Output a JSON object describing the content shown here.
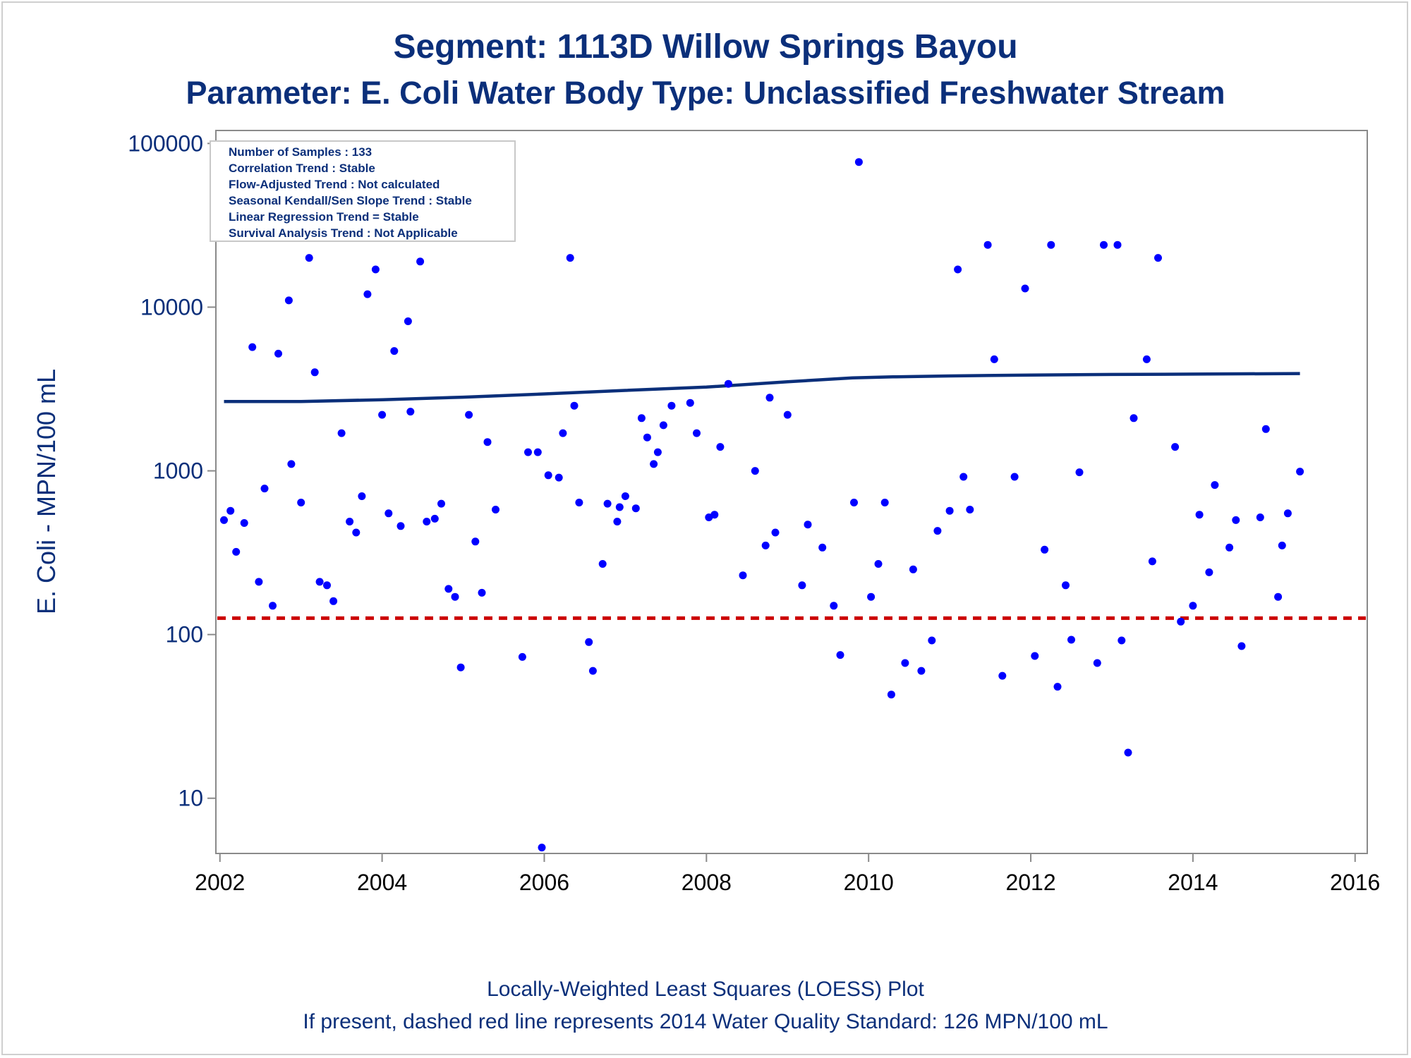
{
  "chart_data": {
    "type": "scatter",
    "title": "Segment: 1113D  Willow Springs Bayou",
    "subtitle": "Parameter: E. Coli   Water Body Type: Unclassified Freshwater Stream",
    "ylabel": "E. Coli - MPN/100 mL",
    "xlabel": "",
    "footer": [
      "Locally-Weighted Least Squares (LOESS) Plot",
      "If present, dashed red line represents 2014 Water Quality Standard: 126 MPN/100 mL"
    ],
    "y_scale": "log",
    "ylim": [
      4.6,
      120000
    ],
    "xlim": [
      2001.95,
      2016.15
    ],
    "x_ticks": [
      2002,
      2004,
      2006,
      2008,
      2010,
      2012,
      2014,
      2016
    ],
    "y_ticks": [
      10,
      100,
      1000,
      10000,
      100000
    ],
    "grid": false,
    "stats_box": [
      "Number of Samples : 133",
      "Correlation Trend : Stable",
      "Flow-Adjusted Trend : Not calculated",
      "Seasonal Kendall/Sen Slope Trend : Stable",
      "Linear Regression Trend = Stable",
      "Survival Analysis Trend : Not Applicable"
    ],
    "standard_line": {
      "value": 126,
      "color": "#cc0000",
      "style": "dashed"
    },
    "series": [
      {
        "kind": "points",
        "color": "#0000ff",
        "points": [
          [
            2002.05,
            500
          ],
          [
            2002.13,
            570
          ],
          [
            2002.2,
            320
          ],
          [
            2002.3,
            480
          ],
          [
            2002.4,
            5700
          ],
          [
            2002.48,
            210
          ],
          [
            2002.55,
            780
          ],
          [
            2002.65,
            150
          ],
          [
            2002.72,
            5200
          ],
          [
            2002.85,
            11000
          ],
          [
            2002.88,
            1100
          ],
          [
            2003.0,
            640
          ],
          [
            2003.1,
            20000
          ],
          [
            2003.17,
            4000
          ],
          [
            2003.23,
            210
          ],
          [
            2003.32,
            200
          ],
          [
            2003.4,
            160
          ],
          [
            2003.5,
            1700
          ],
          [
            2003.6,
            490
          ],
          [
            2003.68,
            420
          ],
          [
            2003.75,
            700
          ],
          [
            2003.82,
            12000
          ],
          [
            2003.92,
            17000
          ],
          [
            2004.0,
            2200
          ],
          [
            2004.08,
            550
          ],
          [
            2004.15,
            5400
          ],
          [
            2004.23,
            460
          ],
          [
            2004.32,
            8200
          ],
          [
            2004.35,
            2300
          ],
          [
            2004.47,
            19000
          ],
          [
            2004.55,
            490
          ],
          [
            2004.65,
            510
          ],
          [
            2004.73,
            630
          ],
          [
            2004.82,
            190
          ],
          [
            2004.9,
            170
          ],
          [
            2004.97,
            63
          ],
          [
            2005.07,
            2200
          ],
          [
            2005.15,
            370
          ],
          [
            2005.23,
            180
          ],
          [
            2005.3,
            1500
          ],
          [
            2005.4,
            580
          ],
          [
            2005.73,
            73
          ],
          [
            2005.8,
            1300
          ],
          [
            2005.92,
            1300
          ],
          [
            2005.97,
            5
          ],
          [
            2006.05,
            940
          ],
          [
            2006.18,
            910
          ],
          [
            2006.23,
            1700
          ],
          [
            2006.32,
            20000
          ],
          [
            2006.37,
            2500
          ],
          [
            2006.43,
            640
          ],
          [
            2006.55,
            90
          ],
          [
            2006.6,
            60
          ],
          [
            2006.72,
            270
          ],
          [
            2006.78,
            630
          ],
          [
            2006.9,
            490
          ],
          [
            2006.93,
            600
          ],
          [
            2007.0,
            700
          ],
          [
            2007.13,
            590
          ],
          [
            2007.2,
            2100
          ],
          [
            2007.27,
            1600
          ],
          [
            2007.35,
            1100
          ],
          [
            2007.4,
            1300
          ],
          [
            2007.47,
            1900
          ],
          [
            2007.57,
            2500
          ],
          [
            2007.8,
            2600
          ],
          [
            2007.88,
            1700
          ],
          [
            2008.03,
            520
          ],
          [
            2008.1,
            540
          ],
          [
            2008.17,
            1400
          ],
          [
            2008.27,
            3400
          ],
          [
            2008.45,
            230
          ],
          [
            2008.6,
            1000
          ],
          [
            2008.73,
            350
          ],
          [
            2008.78,
            2800
          ],
          [
            2008.85,
            420
          ],
          [
            2009.0,
            2200
          ],
          [
            2009.18,
            200
          ],
          [
            2009.25,
            470
          ],
          [
            2009.43,
            340
          ],
          [
            2009.57,
            150
          ],
          [
            2009.65,
            75
          ],
          [
            2009.82,
            640
          ],
          [
            2009.88,
            77000
          ],
          [
            2010.03,
            170
          ],
          [
            2010.12,
            270
          ],
          [
            2010.2,
            640
          ],
          [
            2010.28,
            43
          ],
          [
            2010.45,
            67
          ],
          [
            2010.55,
            250
          ],
          [
            2010.65,
            60
          ],
          [
            2010.78,
            92
          ],
          [
            2010.85,
            430
          ],
          [
            2011.0,
            570
          ],
          [
            2011.1,
            17000
          ],
          [
            2011.17,
            920
          ],
          [
            2011.25,
            580
          ],
          [
            2011.47,
            24000
          ],
          [
            2011.55,
            4800
          ],
          [
            2011.65,
            56
          ],
          [
            2011.8,
            920
          ],
          [
            2011.93,
            13000
          ],
          [
            2012.05,
            74
          ],
          [
            2012.17,
            330
          ],
          [
            2012.25,
            24000
          ],
          [
            2012.33,
            48
          ],
          [
            2012.43,
            200
          ],
          [
            2012.5,
            93
          ],
          [
            2012.6,
            980
          ],
          [
            2012.82,
            67
          ],
          [
            2012.9,
            24000
          ],
          [
            2013.07,
            24000
          ],
          [
            2013.12,
            92
          ],
          [
            2013.2,
            19
          ],
          [
            2013.27,
            2100
          ],
          [
            2013.43,
            4800
          ],
          [
            2013.5,
            280
          ],
          [
            2013.57,
            20000
          ],
          [
            2013.78,
            1400
          ],
          [
            2013.85,
            120
          ],
          [
            2014.0,
            150
          ],
          [
            2014.08,
            540
          ],
          [
            2014.2,
            240
          ],
          [
            2014.27,
            820
          ],
          [
            2014.45,
            340
          ],
          [
            2014.53,
            500
          ],
          [
            2014.6,
            85
          ],
          [
            2014.83,
            520
          ],
          [
            2014.9,
            1800
          ],
          [
            2015.05,
            170
          ],
          [
            2015.1,
            350
          ],
          [
            2015.17,
            550
          ],
          [
            2015.32,
            990
          ]
        ]
      },
      {
        "kind": "loess",
        "color": "#0b2f7a",
        "points": [
          [
            2002.05,
            2650
          ],
          [
            2003.0,
            2650
          ],
          [
            2004.0,
            2720
          ],
          [
            2005.0,
            2820
          ],
          [
            2006.0,
            2950
          ],
          [
            2007.0,
            3100
          ],
          [
            2008.0,
            3250
          ],
          [
            2009.0,
            3500
          ],
          [
            2009.8,
            3700
          ],
          [
            2010.3,
            3750
          ],
          [
            2011.0,
            3800
          ],
          [
            2012.0,
            3850
          ],
          [
            2013.0,
            3880
          ],
          [
            2014.0,
            3900
          ],
          [
            2015.32,
            3930
          ]
        ]
      }
    ]
  }
}
